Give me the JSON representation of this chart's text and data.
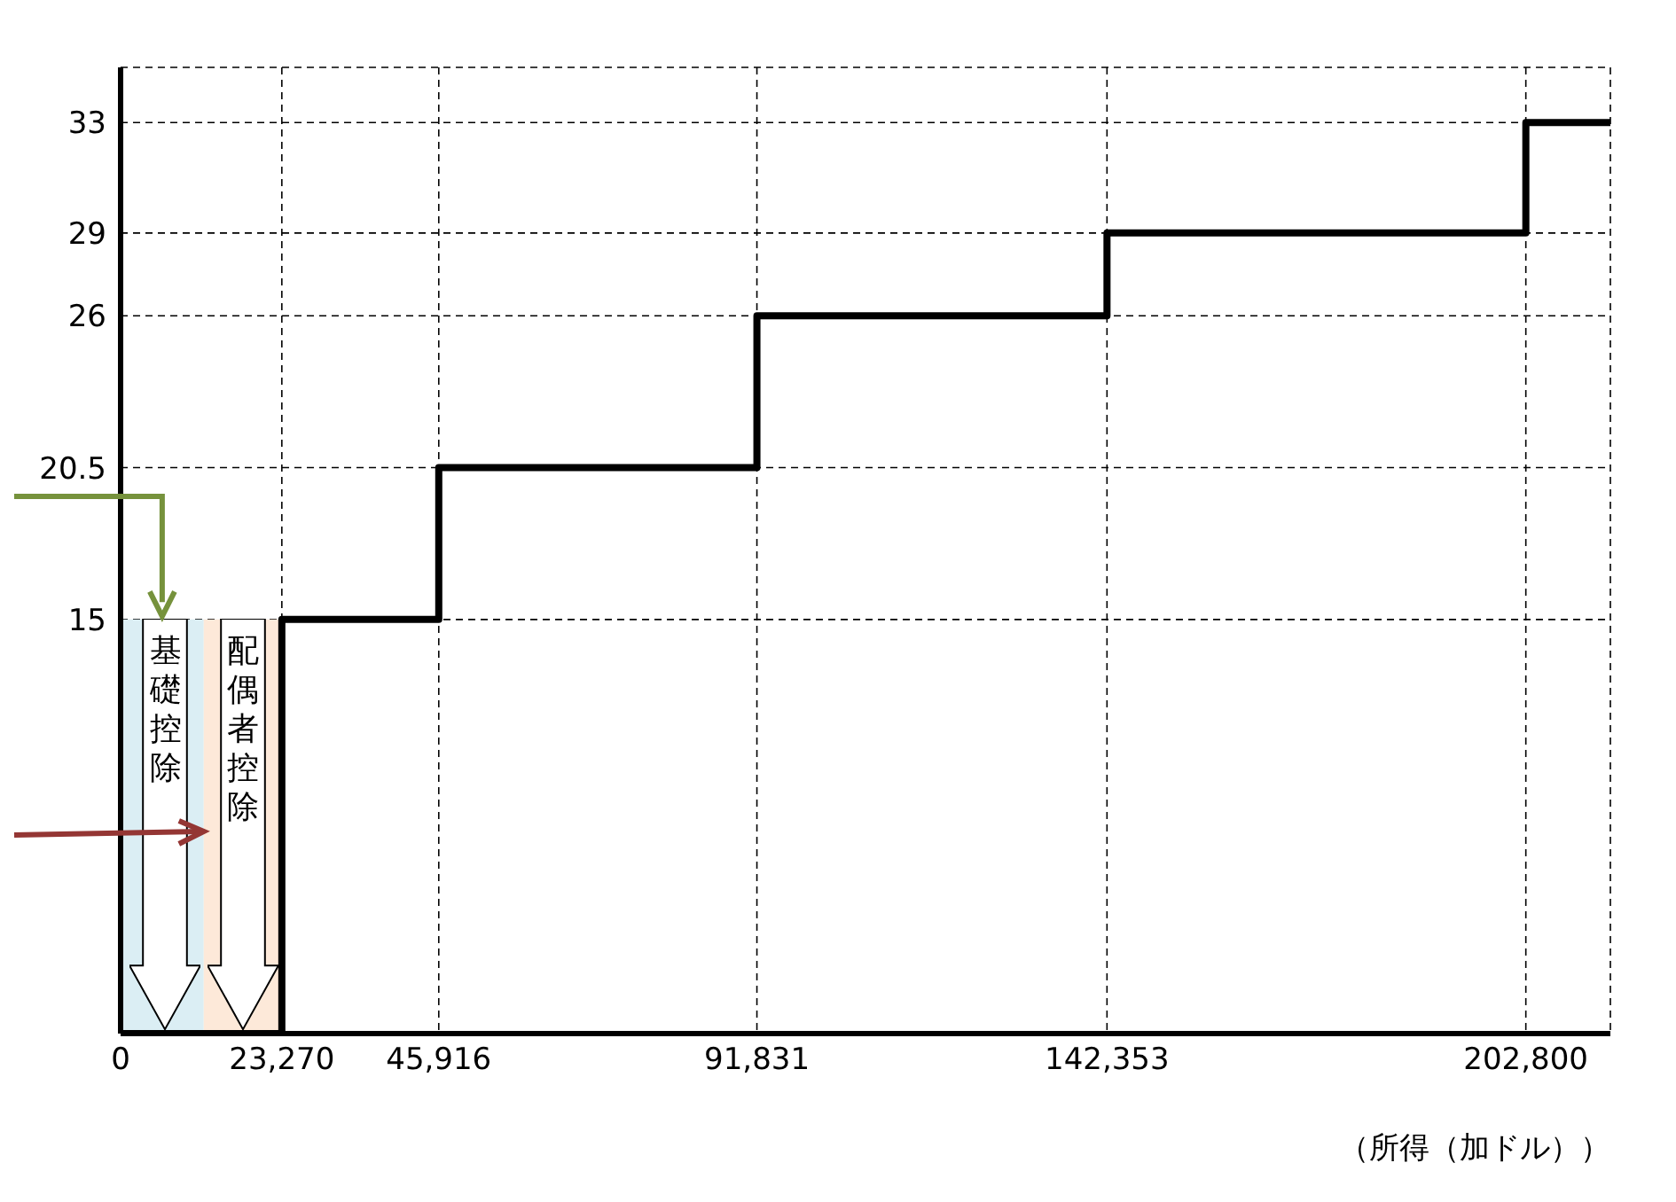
{
  "chart_data": {
    "type": "step",
    "xlabel": "（所得（加ドル））",
    "x": [
      0,
      23270,
      45916,
      91831,
      142353,
      202800,
      215000
    ],
    "values": [
      0,
      15,
      20.5,
      26,
      29,
      33,
      33
    ],
    "color": "#000000",
    "xlim": [
      0,
      215000
    ],
    "xticks": [
      {
        "value": 0,
        "label": "0"
      },
      {
        "value": 23270,
        "label": "23,270"
      },
      {
        "value": 45916,
        "label": "45,916"
      },
      {
        "value": 91831,
        "label": "91,831"
      },
      {
        "value": 142353,
        "label": "142,353"
      },
      {
        "value": 202800,
        "label": "202,800"
      }
    ],
    "ylim": [
      0,
      35
    ],
    "yticks": [
      15,
      20.5,
      26,
      29,
      33
    ],
    "grid": true,
    "line_style": "solid",
    "marker": "none",
    "bands": [
      {
        "axis": "x",
        "from": 0,
        "to": 12000,
        "label": "基礎控除",
        "color": "#dbeef4"
      },
      {
        "axis": "x",
        "from": 12000,
        "to": 23270,
        "label": "配偶者控除",
        "color": "#fde9d9"
      }
    ]
  }
}
